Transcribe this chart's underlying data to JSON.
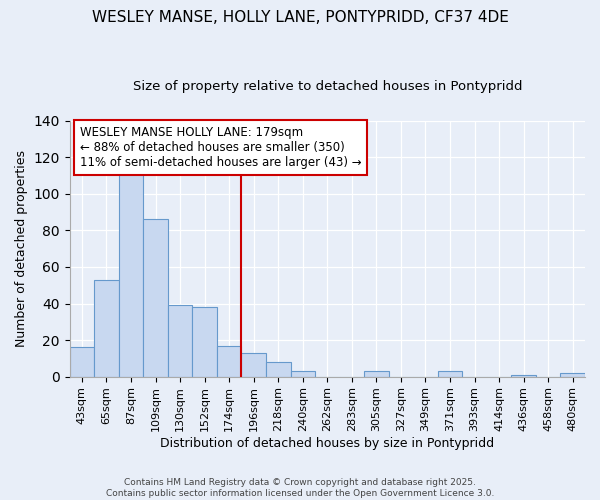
{
  "title": "WESLEY MANSE, HOLLY LANE, PONTYPRIDD, CF37 4DE",
  "subtitle": "Size of property relative to detached houses in Pontypridd",
  "xlabel": "Distribution of detached houses by size in Pontypridd",
  "ylabel": "Number of detached properties",
  "categories": [
    "43sqm",
    "65sqm",
    "87sqm",
    "109sqm",
    "130sqm",
    "152sqm",
    "174sqm",
    "196sqm",
    "218sqm",
    "240sqm",
    "262sqm",
    "283sqm",
    "305sqm",
    "327sqm",
    "349sqm",
    "371sqm",
    "393sqm",
    "414sqm",
    "436sqm",
    "458sqm",
    "480sqm"
  ],
  "values": [
    16,
    53,
    115,
    86,
    39,
    38,
    17,
    13,
    8,
    3,
    0,
    0,
    3,
    0,
    0,
    3,
    0,
    0,
    1,
    0,
    2
  ],
  "bar_color": "#c8d8f0",
  "bar_edge_color": "#6699cc",
  "reference_line_index": 6.5,
  "reference_line_color": "#cc0000",
  "annotation_line1": "WESLEY MANSE HOLLY LANE: 179sqm",
  "annotation_line2": "← 88% of detached houses are smaller (350)",
  "annotation_line3": "11% of semi-detached houses are larger (43) →",
  "background_color": "#e8eef8",
  "plot_bg_color": "#e8eef8",
  "footer_line1": "Contains HM Land Registry data © Crown copyright and database right 2025.",
  "footer_line2": "Contains public sector information licensed under the Open Government Licence 3.0.",
  "ylim": [
    0,
    140
  ],
  "title_fontsize": 11,
  "subtitle_fontsize": 9.5,
  "ylabel_fontsize": 9,
  "xlabel_fontsize": 9,
  "tick_fontsize": 8,
  "bar_width": 1.0
}
